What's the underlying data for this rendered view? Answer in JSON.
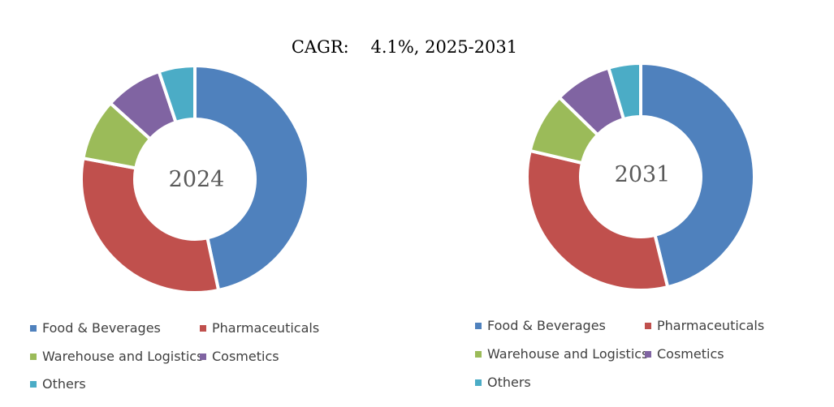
{
  "title": "CAGR:    4.1%, 2025-2031",
  "chart_data": [
    {
      "type": "pie",
      "hole": true,
      "center_label": "2024",
      "categories": [
        "Food & Beverages",
        "Pharmaceuticals",
        "Warehouse and Logistics",
        "Cosmetics",
        "Others"
      ],
      "values": [
        45.5,
        30.5,
        8.5,
        8.0,
        5.0
      ],
      "colors": [
        "#4F81BD",
        "#C0504D",
        "#9BBB59",
        "#8064A2",
        "#4BACC6"
      ]
    },
    {
      "type": "pie",
      "hole": true,
      "center_label": "2031",
      "categories": [
        "Food & Beverages",
        "Pharmaceuticals",
        "Warehouse and Logistics",
        "Cosmetics",
        "Others"
      ],
      "values": [
        45.5,
        32.0,
        8.5,
        8.0,
        4.5
      ],
      "colors": [
        "#4F81BD",
        "#C0504D",
        "#9BBB59",
        "#8064A2",
        "#4BACC6"
      ]
    }
  ],
  "legend": [
    {
      "label": "Food & Beverages",
      "color": "#4F81BD"
    },
    {
      "label": "Pharmaceuticals",
      "color": "#C0504D"
    },
    {
      "label": "Warehouse and Logistics",
      "color": "#9BBB59"
    },
    {
      "label": "Cosmetics",
      "color": "#8064A2"
    },
    {
      "label": "Others",
      "color": "#4BACC6"
    }
  ]
}
